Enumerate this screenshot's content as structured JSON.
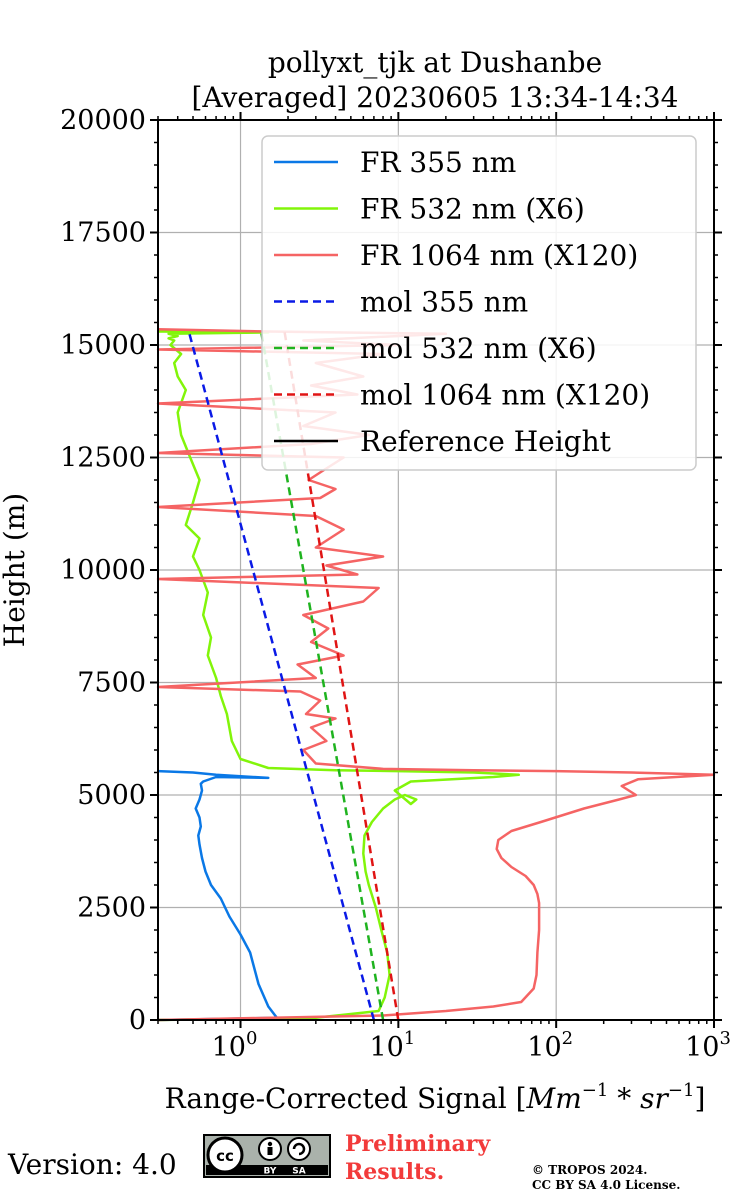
{
  "chart_data": {
    "type": "line",
    "title": "pollyxt_tjk at Dushanbe",
    "subtitle": "[Averaged] 20230605 13:34-14:34",
    "ylabel": "Height (m)",
    "xlabel_text": "Range-Corrected Signal [",
    "xlabel_math": "Mm",
    "xscale": "log",
    "xlim": [
      0.3,
      1000
    ],
    "ylim": [
      0,
      20000
    ],
    "x_ticks": [
      1,
      10,
      100,
      1000
    ],
    "x_tick_exponents": [
      "0",
      "1",
      "2",
      "3"
    ],
    "x_tick_base": "10",
    "y_ticks": [
      0,
      2500,
      5000,
      7500,
      10000,
      12500,
      15000,
      17500,
      20000
    ],
    "y_tick_labels": [
      "0",
      "2500",
      "5000",
      "7500",
      "10000",
      "12500",
      "15000",
      "17500",
      "20000"
    ],
    "grid": true,
    "legend_position": "top-right",
    "series": [
      {
        "name": "FR 355 nm",
        "color": "#0a78e6",
        "style": "solid",
        "x": [
          0.3,
          1.7,
          1.5,
          1.3,
          1.15,
          1.0,
          0.85,
          0.75,
          0.65,
          0.6,
          0.57,
          0.55,
          0.54,
          0.56,
          0.55,
          0.52,
          0.55,
          0.57,
          0.56,
          0.58,
          0.7,
          1.5,
          0.7,
          0.5,
          0.3
        ],
        "y": [
          0,
          50,
          300,
          800,
          1500,
          1900,
          2300,
          2700,
          3000,
          3300,
          3600,
          3900,
          4100,
          4300,
          4500,
          4700,
          4900,
          5100,
          5250,
          5300,
          5400,
          5380,
          5450,
          5500,
          5530
        ]
      },
      {
        "name": "FR 532 nm (X6)",
        "color": "#82f50a",
        "style": "solid",
        "x": [
          0.3,
          3,
          7.5,
          8.2,
          8.8,
          8.5,
          7.8,
          7.2,
          6.5,
          6.2,
          6.0,
          6.1,
          6.8,
          8.0,
          9.5,
          11,
          13,
          12,
          9.5,
          12,
          40,
          58,
          30,
          10,
          4,
          1.5,
          1.0,
          0.88,
          0.82,
          0.75,
          0.7,
          0.62,
          0.65,
          0.58,
          0.62,
          0.55,
          0.5,
          0.55,
          0.45,
          0.5,
          0.55,
          0.48,
          0.42,
          0.4,
          0.45,
          0.4,
          0.38,
          0.42,
          0.36,
          0.38,
          0.35,
          0.4,
          0.35,
          1.5,
          0.3
        ],
        "y": [
          0,
          50,
          200,
          500,
          1000,
          1500,
          2000,
          2500,
          3000,
          3300,
          3700,
          4100,
          4400,
          4700,
          4900,
          5000,
          4900,
          4800,
          5100,
          5300,
          5400,
          5450,
          5500,
          5530,
          5550,
          5600,
          5800,
          6200,
          6800,
          7200,
          7600,
          8100,
          8500,
          9000,
          9500,
          10000,
          10300,
          10700,
          11000,
          11500,
          12000,
          12500,
          13000,
          13500,
          14000,
          14300,
          14600,
          14800,
          15000,
          15100,
          15150,
          15200,
          15250,
          15280,
          15300
        ]
      },
      {
        "name": "FR 1064 nm (X120)",
        "color": "#f56464",
        "style": "solid",
        "x": [
          0.3,
          8,
          20,
          40,
          60,
          72,
          75,
          76,
          78,
          78,
          76,
          72,
          64,
          52,
          45,
          42,
          43,
          52,
          80,
          150,
          250,
          320,
          260,
          330,
          1000,
          300,
          100,
          30,
          8,
          3,
          2.5,
          3.5,
          2.8,
          4.0,
          2.6,
          3.2,
          2.4,
          0.3,
          3.0,
          2.3,
          4.5,
          2.8,
          3.6,
          2.5,
          6.0,
          7.5,
          0.3,
          5.5,
          3.5,
          8.0,
          3.0,
          4.5,
          3.0,
          0.3,
          3.2,
          4.0,
          2.7,
          3.3,
          4.5,
          0.3,
          2.8,
          6.5,
          2.5,
          4.0,
          0.3,
          5.5,
          2.8,
          6.0,
          3.0,
          8.0,
          0.3,
          10.0,
          2.5,
          20.0,
          1.5,
          0.3
        ],
        "y": [
          0,
          100,
          200,
          300,
          400,
          700,
          1000,
          1500,
          2000,
          2600,
          2800,
          3000,
          3200,
          3400,
          3600,
          3800,
          4000,
          4200,
          4400,
          4700,
          4900,
          5000,
          5200,
          5350,
          5450,
          5500,
          5530,
          5550,
          5580,
          5700,
          6000,
          6200,
          6500,
          6700,
          6800,
          7100,
          7300,
          7400,
          7600,
          7900,
          8100,
          8400,
          8700,
          9000,
          9300,
          9600,
          9800,
          9900,
          10100,
          10300,
          10500,
          10900,
          11200,
          11400,
          11600,
          11800,
          12000,
          12200,
          12500,
          12600,
          12800,
          13000,
          13200,
          13500,
          13700,
          13900,
          14100,
          14300,
          14600,
          14800,
          14900,
          15000,
          15100,
          15250,
          15300,
          15350
        ]
      },
      {
        "name": "mol 355 nm",
        "color": "#0a1ae6",
        "style": "dashed",
        "x": [
          7.0,
          0.47
        ],
        "y": [
          0,
          15300
        ]
      },
      {
        "name": "mol 532 nm (X6)",
        "color": "#1fb31f",
        "style": "dashed",
        "x": [
          8.0,
          1.35
        ],
        "y": [
          0,
          15300
        ]
      },
      {
        "name": "mol 1064 nm (X120)",
        "color": "#e01414",
        "style": "dashed",
        "x": [
          10.0,
          1.9
        ],
        "y": [
          0,
          15300
        ]
      },
      {
        "name": "Reference Height",
        "color": "#000000",
        "style": "solid",
        "x": [],
        "y": []
      }
    ]
  },
  "footer": {
    "version": "Version: 4.0",
    "preliminary_line1": "Preliminary",
    "preliminary_line2": "Results.",
    "copyright_line1": "© TROPOS 2024.",
    "copyright_line2": "CC BY SA 4.0 License.",
    "license_badge": "cc-by-sa-badge",
    "badge_by": "BY",
    "badge_sa": "SA"
  }
}
